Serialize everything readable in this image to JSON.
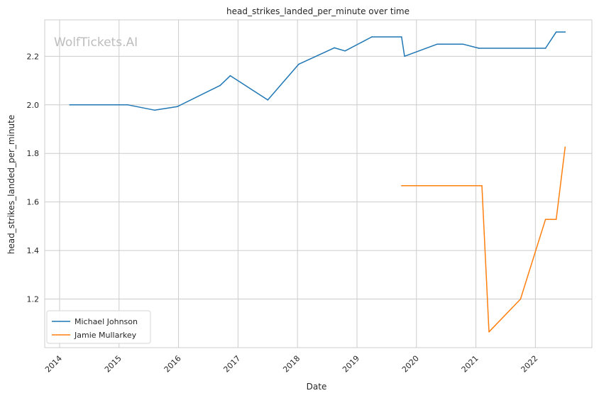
{
  "chart_data": {
    "type": "line",
    "title": "head_strikes_landed_per_minute over time",
    "xlabel": "Date",
    "ylabel": "head_strikes_landed_per_minute",
    "watermark": "WolfTickets.AI",
    "x_ticks": [
      "2014",
      "2015",
      "2016",
      "2017",
      "2018",
      "2019",
      "2020",
      "2021",
      "2022"
    ],
    "y_ticks": [
      "1.2",
      "1.4",
      "1.6",
      "1.8",
      "2.0",
      "2.2"
    ],
    "xlim": [
      2013.75,
      2022.95
    ],
    "ylim": [
      1.0,
      2.35
    ],
    "grid": true,
    "legend_position": "lower-left",
    "series": [
      {
        "name": "Michael Johnson",
        "color": "#1f77b4",
        "x": [
          2014.17,
          2015.15,
          2015.6,
          2015.98,
          2016.7,
          2016.87,
          2017.5,
          2018.02,
          2018.62,
          2018.8,
          2019.25,
          2019.75,
          2019.8,
          2020.35,
          2020.78,
          2021.05,
          2022.17,
          2022.35,
          2022.5
        ],
        "values": [
          2.0,
          2.0,
          1.978,
          1.993,
          2.08,
          2.12,
          2.02,
          2.167,
          2.235,
          2.222,
          2.28,
          2.28,
          2.2,
          2.25,
          2.25,
          2.233,
          2.233,
          2.3,
          2.3
        ]
      },
      {
        "name": "Jamie Mullarkey",
        "color": "#ff7f0e",
        "x": [
          2019.75,
          2021.1,
          2021.22,
          2021.75,
          2022.17,
          2022.35,
          2022.5
        ],
        "values": [
          1.667,
          1.667,
          1.065,
          1.2,
          1.528,
          1.528,
          1.826
        ]
      }
    ]
  }
}
